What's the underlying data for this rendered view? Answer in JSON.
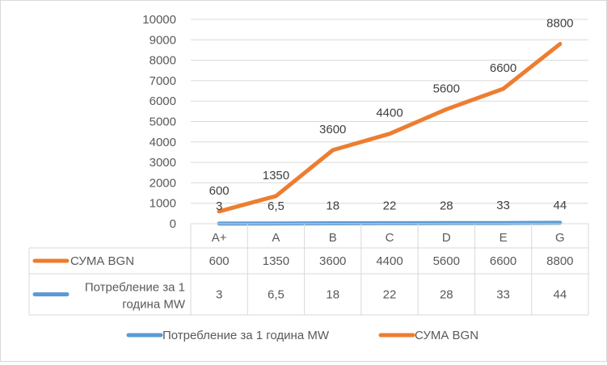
{
  "chart_data": {
    "type": "line",
    "title": "",
    "xlabel": "",
    "ylabel": "",
    "categories": [
      "A+",
      "A",
      "B",
      "C",
      "D",
      "E",
      "G"
    ],
    "ylim": [
      0,
      10000
    ],
    "yticks": [
      0,
      1000,
      2000,
      3000,
      4000,
      5000,
      6000,
      7000,
      8000,
      9000,
      10000
    ],
    "grid": "horizontal",
    "legend_position": "bottom",
    "data_table": true,
    "series": [
      {
        "name": "СУМА BGN",
        "color": "#ED7D31",
        "values": [
          600,
          1350,
          3600,
          4400,
          5600,
          6600,
          8800
        ],
        "value_labels": [
          "600",
          "1350",
          "3600",
          "4400",
          "5600",
          "6600",
          "8800"
        ]
      },
      {
        "name": "Потребление за 1 година MW",
        "table_label_lines": [
          "Потребление за 1",
          "година MW"
        ],
        "color": "#5B9BD5",
        "values": [
          3,
          6.5,
          18,
          22,
          28,
          33,
          44
        ],
        "value_labels": [
          "3",
          "6,5",
          "18",
          "22",
          "28",
          "33",
          "44"
        ]
      }
    ],
    "legend_order": [
      1,
      0
    ]
  }
}
